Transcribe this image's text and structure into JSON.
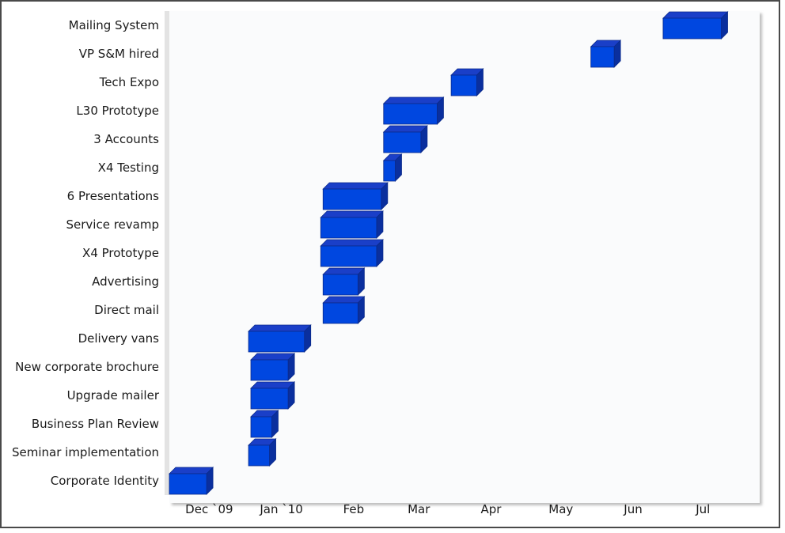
{
  "chart_data": {
    "type": "bar",
    "orientation": "horizontal",
    "style": "3d-gantt",
    "bar_color": "#0047e0",
    "bar_top_color": "#1a3fc8",
    "bar_side_color": "#0a2f9e",
    "bar_edge_color": "#0a2a8a",
    "x_ticks": [
      {
        "label": "Dec `09",
        "date": "2009-12-01"
      },
      {
        "label": "Jan `10",
        "date": "2010-01-01"
      },
      {
        "label": "Feb",
        "date": "2010-02-01"
      },
      {
        "label": "Mar",
        "date": "2010-03-01"
      },
      {
        "label": "Apr",
        "date": "2010-04-01"
      },
      {
        "label": "May",
        "date": "2010-05-01"
      },
      {
        "label": "Jun",
        "date": "2010-06-01"
      },
      {
        "label": "Jul",
        "date": "2010-07-01"
      }
    ],
    "xlim": [
      "2009-11-20",
      "2010-07-24"
    ],
    "tasks": [
      {
        "name": "Mailing System",
        "start": "2010-06-20",
        "end": "2010-07-15"
      },
      {
        "name": "VP S&M hired",
        "start": "2010-05-20",
        "end": "2010-05-30"
      },
      {
        "name": "Tech Expo",
        "start": "2010-03-21",
        "end": "2010-04-01"
      },
      {
        "name": "L30 Prototype",
        "start": "2010-02-20",
        "end": "2010-03-15"
      },
      {
        "name": "3 Accounts",
        "start": "2010-02-20",
        "end": "2010-03-08"
      },
      {
        "name": "X4 Testing",
        "start": "2010-02-20",
        "end": "2010-02-25"
      },
      {
        "name": "6 Presentations",
        "start": "2010-01-25",
        "end": "2010-02-19"
      },
      {
        "name": "Service revamp",
        "start": "2010-01-24",
        "end": "2010-02-17"
      },
      {
        "name": "X4 Prototype",
        "start": "2010-01-24",
        "end": "2010-02-17"
      },
      {
        "name": "Advertising",
        "start": "2010-01-25",
        "end": "2010-02-09"
      },
      {
        "name": "Direct mail",
        "start": "2010-01-25",
        "end": "2010-02-09"
      },
      {
        "name": "Delivery vans",
        "start": "2009-12-24",
        "end": "2010-01-17"
      },
      {
        "name": "New corporate brochure",
        "start": "2009-12-25",
        "end": "2010-01-10"
      },
      {
        "name": "Upgrade mailer",
        "start": "2009-12-25",
        "end": "2010-01-10"
      },
      {
        "name": "Business Plan Review",
        "start": "2009-12-25",
        "end": "2010-01-03"
      },
      {
        "name": "Seminar implementation",
        "start": "2009-12-24",
        "end": "2010-01-02"
      },
      {
        "name": "Corporate Identity",
        "start": "2009-11-20",
        "end": "2009-12-06"
      }
    ]
  }
}
